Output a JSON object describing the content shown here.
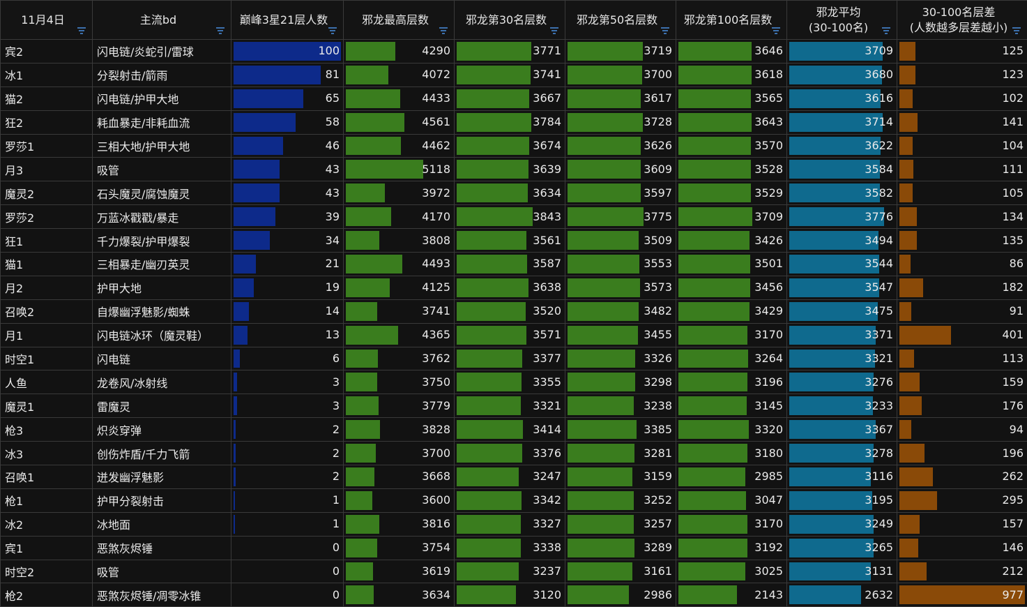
{
  "colors": {
    "count": "#0d2a8a",
    "max": "#3a7d1e",
    "rank30": "#3a7d1e",
    "rank50": "#3a7d1e",
    "rank100": "#3a7d1e",
    "avg": "#0f6a8e",
    "diff": "#8a4a08"
  },
  "icons": {
    "filter": "filter-icon"
  },
  "headers": {
    "date": "11月4日",
    "build": "主流bd",
    "count": "巅峰3星21层人数",
    "max": "邪龙最高层数",
    "rank30": "邪龙第30名层数",
    "rank50": "邪龙第50名层数",
    "rank100": "邪龙第100名层数",
    "avg_line1": "邪龙平均",
    "avg_line2": "(30-100名)",
    "diff_line1": "30-100名层差",
    "diff_line2": "(人数越多层差越小)"
  },
  "rows": [
    {
      "hero": "宾2",
      "build": "闪电链/炎蛇引/雷球",
      "count": 100,
      "max": 4290,
      "rank30": 3771,
      "rank50": 3719,
      "rank100": 3646,
      "avg": 3709,
      "diff": 125
    },
    {
      "hero": "冰1",
      "build": "分裂射击/箭雨",
      "count": 81,
      "max": 4072,
      "rank30": 3741,
      "rank50": 3700,
      "rank100": 3618,
      "avg": 3680,
      "diff": 123
    },
    {
      "hero": "猫2",
      "build": "闪电链/护甲大地",
      "count": 65,
      "max": 4433,
      "rank30": 3667,
      "rank50": 3617,
      "rank100": 3565,
      "avg": 3616,
      "diff": 102
    },
    {
      "hero": "狂2",
      "build": "耗血暴走/非耗血流",
      "count": 58,
      "max": 4561,
      "rank30": 3784,
      "rank50": 3728,
      "rank100": 3643,
      "avg": 3714,
      "diff": 141
    },
    {
      "hero": "罗莎1",
      "build": "三相大地/护甲大地",
      "count": 46,
      "max": 4462,
      "rank30": 3674,
      "rank50": 3626,
      "rank100": 3570,
      "avg": 3622,
      "diff": 104
    },
    {
      "hero": "月3",
      "build": "吸管",
      "count": 43,
      "max": 5118,
      "rank30": 3639,
      "rank50": 3609,
      "rank100": 3528,
      "avg": 3584,
      "diff": 111
    },
    {
      "hero": "魔灵2",
      "build": "石头魔灵/腐蚀魔灵",
      "count": 43,
      "max": 3972,
      "rank30": 3634,
      "rank50": 3597,
      "rank100": 3529,
      "avg": 3582,
      "diff": 105
    },
    {
      "hero": "罗莎2",
      "build": "万蓝冰戳戳/暴走",
      "count": 39,
      "max": 4170,
      "rank30": 3843,
      "rank50": 3775,
      "rank100": 3709,
      "avg": 3776,
      "diff": 134
    },
    {
      "hero": "狂1",
      "build": "千力爆裂/护甲爆裂",
      "count": 34,
      "max": 3808,
      "rank30": 3561,
      "rank50": 3509,
      "rank100": 3426,
      "avg": 3494,
      "diff": 135
    },
    {
      "hero": "猫1",
      "build": "三相暴走/幽刃英灵",
      "count": 21,
      "max": 4493,
      "rank30": 3587,
      "rank50": 3553,
      "rank100": 3501,
      "avg": 3544,
      "diff": 86
    },
    {
      "hero": "月2",
      "build": "护甲大地",
      "count": 19,
      "max": 4125,
      "rank30": 3638,
      "rank50": 3573,
      "rank100": 3456,
      "avg": 3547,
      "diff": 182
    },
    {
      "hero": "召唤2",
      "build": "自爆幽浮魅影/蜘蛛",
      "count": 14,
      "max": 3741,
      "rank30": 3520,
      "rank50": 3482,
      "rank100": 3429,
      "avg": 3475,
      "diff": 91
    },
    {
      "hero": "月1",
      "build": "闪电链冰环（魔灵鞋）",
      "count": 13,
      "max": 4365,
      "rank30": 3571,
      "rank50": 3455,
      "rank100": 3170,
      "avg": 3371,
      "diff": 401
    },
    {
      "hero": "时空1",
      "build": "闪电链",
      "count": 6,
      "max": 3762,
      "rank30": 3377,
      "rank50": 3326,
      "rank100": 3264,
      "avg": 3321,
      "diff": 113
    },
    {
      "hero": "人鱼",
      "build": "龙卷风/冰射线",
      "count": 3,
      "max": 3750,
      "rank30": 3355,
      "rank50": 3298,
      "rank100": 3196,
      "avg": 3276,
      "diff": 159
    },
    {
      "hero": "魔灵1",
      "build": "雷魔灵",
      "count": 3,
      "max": 3779,
      "rank30": 3321,
      "rank50": 3238,
      "rank100": 3145,
      "avg": 3233,
      "diff": 176
    },
    {
      "hero": "枪3",
      "build": "炽炎穿弹",
      "count": 2,
      "max": 3828,
      "rank30": 3414,
      "rank50": 3385,
      "rank100": 3320,
      "avg": 3367,
      "diff": 94
    },
    {
      "hero": "冰3",
      "build": "创伤炸盾/千力飞箭",
      "count": 2,
      "max": 3700,
      "rank30": 3376,
      "rank50": 3281,
      "rank100": 3180,
      "avg": 3278,
      "diff": 196
    },
    {
      "hero": "召唤1",
      "build": "迸发幽浮魅影",
      "count": 2,
      "max": 3668,
      "rank30": 3247,
      "rank50": 3159,
      "rank100": 2985,
      "avg": 3116,
      "diff": 262
    },
    {
      "hero": "枪1",
      "build": "护甲分裂射击",
      "count": 1,
      "max": 3600,
      "rank30": 3342,
      "rank50": 3252,
      "rank100": 3047,
      "avg": 3195,
      "diff": 295
    },
    {
      "hero": "冰2",
      "build": "冰地面",
      "count": 1,
      "max": 3816,
      "rank30": 3327,
      "rank50": 3257,
      "rank100": 3170,
      "avg": 3249,
      "diff": 157
    },
    {
      "hero": "宾1",
      "build": "恶煞灰烬锤",
      "count": 0,
      "max": 3754,
      "rank30": 3338,
      "rank50": 3289,
      "rank100": 3192,
      "avg": 3265,
      "diff": 146
    },
    {
      "hero": "时空2",
      "build": "吸管",
      "count": 0,
      "max": 3619,
      "rank30": 3237,
      "rank50": 3161,
      "rank100": 3025,
      "avg": 3131,
      "diff": 212
    },
    {
      "hero": "枪2",
      "build": "恶煞灰烬锤/凋零冰锥",
      "count": 0,
      "max": 3634,
      "rank30": 3120,
      "rank50": 2986,
      "rank100": 2143,
      "avg": 2632,
      "diff": 977
    }
  ]
}
